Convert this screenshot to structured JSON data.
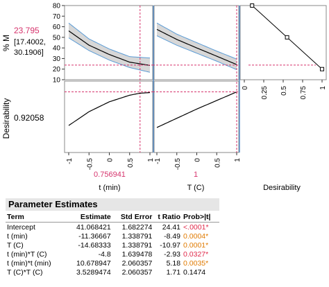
{
  "colors": {
    "accent_red": "#d6336c",
    "band": "#d7d7d7",
    "band_edge": "#5a9bd5",
    "sig": "#e07a00"
  },
  "profiler": {
    "y_label_top": "% M",
    "y_label_bottom": "Desirability",
    "predicted_value": "23.795",
    "ci_line1": "[17.4002,",
    "ci_line2": "30.1906]",
    "desirability_value": "0.92058",
    "x1_value": "0.756941",
    "x1_label": "t (min)",
    "x2_value": "1",
    "x2_label": "T (C)",
    "x3_label": "Desirability"
  },
  "chart_data": [
    {
      "type": "line",
      "name": "% M vs t (min)",
      "x": [
        -1,
        -0.5,
        0,
        0.5,
        1
      ],
      "y": [
        56.1,
        42.6,
        33.8,
        26.6,
        23.5
      ],
      "ci_lower": [
        49.5,
        37.5,
        28.5,
        21.5,
        17.0
      ],
      "ci_upper": [
        63.5,
        48.5,
        39.0,
        31.8,
        30.5
      ],
      "ylim": [
        10,
        80
      ],
      "yticks": [
        10,
        20,
        30,
        40,
        50,
        60,
        70,
        80
      ],
      "xticks": [
        "-1",
        "-0.5",
        "0",
        "0.5",
        "1"
      ],
      "current_x": 0.756941,
      "current_y": 23.795
    },
    {
      "type": "line",
      "name": "% M vs T (C)",
      "x": [
        -1,
        -0.5,
        0,
        0.5,
        1
      ],
      "y": [
        57.5,
        48.0,
        40.0,
        32.2,
        24.3
      ],
      "ci_lower": [
        51.5,
        42.5,
        35.0,
        27.5,
        19.5
      ],
      "ci_upper": [
        63.5,
        53.0,
        45.0,
        37.0,
        29.5
      ],
      "ylim": [
        10,
        80
      ],
      "xticks": [
        "-1",
        "-0.5",
        "0",
        "0.5",
        "1"
      ],
      "current_x": 1,
      "current_y": 23.795
    },
    {
      "type": "line",
      "name": "desirability function",
      "x": [
        0.1,
        0.55,
        1.0
      ],
      "y": [
        80,
        50,
        20
      ],
      "xticks": [
        "0",
        "0.25",
        "0.5",
        "0.75",
        "1"
      ],
      "current_x": 0.92058
    },
    {
      "type": "line",
      "name": "Desirability vs t (min)",
      "x": [
        -1,
        -0.5,
        0,
        0.5,
        0.75,
        1
      ],
      "y": [
        0.41,
        0.62,
        0.77,
        0.87,
        0.9,
        0.91
      ],
      "ylim": [
        0,
        1
      ],
      "current_x": 0.756941,
      "current_y": 0.92058
    },
    {
      "type": "line",
      "name": "Desirability vs T (C)",
      "x": [
        -1,
        -0.5,
        0,
        0.5,
        1
      ],
      "y": [
        0.38,
        0.52,
        0.66,
        0.79,
        0.92
      ],
      "ylim": [
        0,
        1
      ],
      "current_x": 1,
      "current_y": 0.92058
    }
  ],
  "parameter_estimates": {
    "title": "Parameter Estimates",
    "headers": {
      "term": "Term",
      "estimate": "Estimate",
      "std_error": "Std Error",
      "t_ratio": "t Ratio",
      "prob": "Prob>|t|"
    },
    "rows": [
      {
        "term": "Intercept",
        "estimate": "41.068421",
        "std_error": "1.682274",
        "t_ratio": "24.41",
        "prob": "<.0001*",
        "style": "bad"
      },
      {
        "term": "t (min)",
        "estimate": "-11.36667",
        "std_error": "1.338791",
        "t_ratio": "-8.49",
        "prob": "0.0004*",
        "style": "sig"
      },
      {
        "term": "T (C)",
        "estimate": "-14.68333",
        "std_error": "1.338791",
        "t_ratio": "-10.97",
        "prob": "0.0001*",
        "style": "sig"
      },
      {
        "term": "t (min)*T (C)",
        "estimate": "-4.8",
        "std_error": "1.639478",
        "t_ratio": "-2.93",
        "prob": "0.0327*",
        "style": "bad"
      },
      {
        "term": "t (min)*t (min)",
        "estimate": "10.678947",
        "std_error": "2.060357",
        "t_ratio": "5.18",
        "prob": "0.0035*",
        "style": "sig"
      },
      {
        "term": "T (C)*T (C)",
        "estimate": "3.5289474",
        "std_error": "2.060357",
        "t_ratio": "1.71",
        "prob": "0.1474",
        "style": "none"
      }
    ]
  }
}
